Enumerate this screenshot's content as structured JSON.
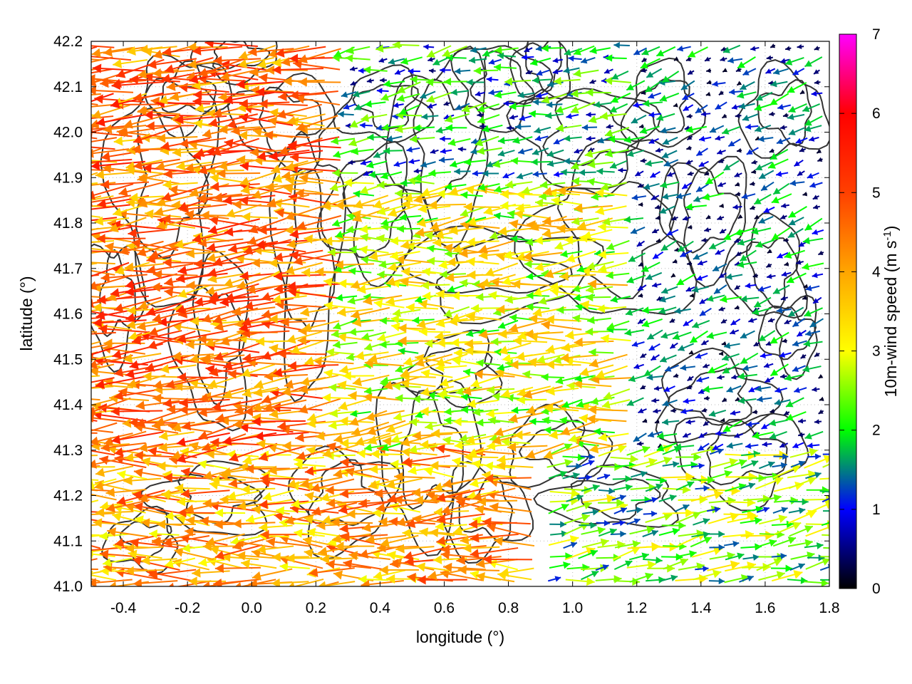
{
  "chart_data": {
    "type": "vector-field",
    "xlabel": "longitude (°)",
    "ylabel": "latitude (°)",
    "colorbar_label": "10m-wind speed (m s",
    "colorbar_label_sup": "-1",
    "colorbar_label_end": ")",
    "xlim": [
      -0.5,
      1.8
    ],
    "ylim": [
      41.0,
      42.2
    ],
    "x_ticks": [
      -0.4,
      -0.2,
      0.0,
      0.2,
      0.4,
      0.6,
      0.8,
      1.0,
      1.2,
      1.4,
      1.6,
      1.8
    ],
    "x_tick_labels": [
      "-0.4",
      "-0.2",
      "0.0",
      "0.2",
      "0.4",
      "0.6",
      "0.8",
      "1.0",
      "1.2",
      "1.4",
      "1.6",
      "1.8"
    ],
    "y_ticks": [
      41.0,
      41.1,
      41.2,
      41.3,
      41.4,
      41.5,
      41.6,
      41.7,
      41.8,
      41.9,
      42.0,
      42.1,
      42.2
    ],
    "y_tick_labels": [
      "41.0",
      "41.1",
      "41.2",
      "41.3",
      "41.4",
      "41.5",
      "41.6",
      "41.7",
      "41.8",
      "41.9",
      "42.0",
      "42.1",
      "42.2"
    ],
    "colorbar_range": [
      0,
      7
    ],
    "colorbar_ticks": [
      0,
      1,
      2,
      3,
      4,
      5,
      6,
      7
    ],
    "colorbar_tick_labels": [
      "0",
      "1",
      "2",
      "3",
      "4",
      "5",
      "6",
      "7"
    ],
    "colormap": [
      {
        "value": 0,
        "color": "#000000"
      },
      {
        "value": 1,
        "color": "#0000ff"
      },
      {
        "value": 2,
        "color": "#00ff00"
      },
      {
        "value": 3,
        "color": "#ffff00"
      },
      {
        "value": 4,
        "color": "#ffa500"
      },
      {
        "value": 5,
        "color": "#ff4000"
      },
      {
        "value": 6,
        "color": "#ff0000"
      },
      {
        "value": 7,
        "color": "#ff00ff"
      }
    ],
    "grid": "dotted",
    "contour_color": "#333333",
    "wind_field": {
      "description_regions": [
        {
          "lon_range": [
            -0.5,
            0.3
          ],
          "lat_range": [
            41.3,
            42.2
          ],
          "speed": 4.5,
          "direction_deg": 265
        },
        {
          "lon_range": [
            0.3,
            1.2
          ],
          "lat_range": [
            41.3,
            41.9
          ],
          "speed": 3.0,
          "direction_deg": 265
        },
        {
          "lon_range": [
            1.2,
            1.8
          ],
          "lat_range": [
            41.3,
            42.2
          ],
          "speed": 1.0,
          "direction_deg": 250
        },
        {
          "lon_range": [
            0.9,
            1.8
          ],
          "lat_range": [
            41.0,
            41.3
          ],
          "speed": 2.2,
          "direction_deg": 80
        },
        {
          "lon_range": [
            -0.5,
            0.9
          ],
          "lat_range": [
            41.0,
            41.3
          ],
          "speed": 4.0,
          "direction_deg": 270
        }
      ]
    }
  }
}
